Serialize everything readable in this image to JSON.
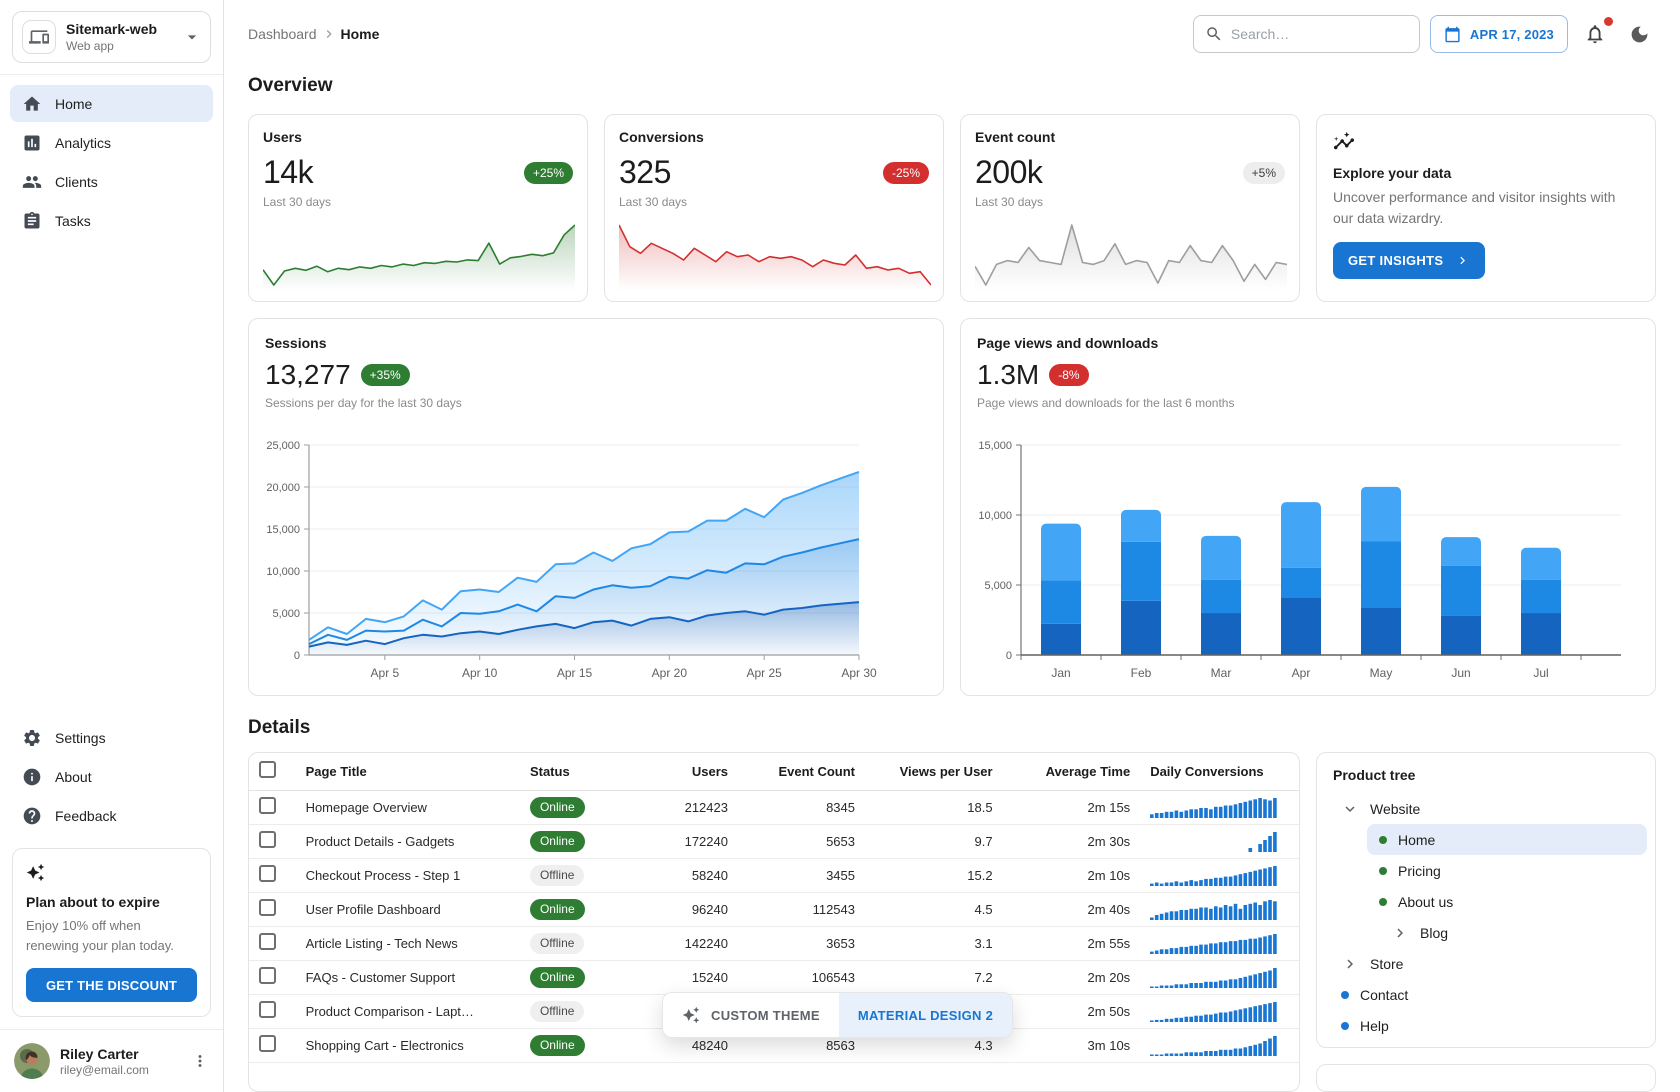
{
  "app": {
    "name": "Sitemark-web",
    "type": "Web app"
  },
  "colors": {
    "accent": "#1876d2",
    "success": "#2e7d32",
    "error": "#d32f2f",
    "spark_bar": "#1976d2"
  },
  "sidebar": {
    "nav": [
      {
        "label": "Home",
        "icon": "home-icon",
        "selected": true
      },
      {
        "label": "Analytics",
        "icon": "analytics-icon",
        "selected": false
      },
      {
        "label": "Clients",
        "icon": "clients-icon",
        "selected": false
      },
      {
        "label": "Tasks",
        "icon": "tasks-icon",
        "selected": false
      }
    ],
    "secondary": [
      {
        "label": "Settings",
        "icon": "gear-icon"
      },
      {
        "label": "About",
        "icon": "info-icon"
      },
      {
        "label": "Feedback",
        "icon": "help-icon"
      }
    ],
    "plan_card": {
      "title": "Plan about to expire",
      "body": "Enjoy 10% off when renewing your plan today.",
      "button": "GET THE DISCOUNT"
    },
    "user": {
      "name": "Riley Carter",
      "email": "riley@email.com"
    }
  },
  "header": {
    "breadcrumb": {
      "root": "Dashboard",
      "current": "Home"
    },
    "search_placeholder": "Search…",
    "date": "APR 17, 2023"
  },
  "overview": {
    "title": "Overview",
    "stat_cards": [
      {
        "title": "Users",
        "value": "14k",
        "chip": "+25%",
        "chip_type": "success",
        "caption": "Last 30 days",
        "color": "#2e7d32",
        "trend": [
          340,
          120,
          320,
          360,
          330,
          390,
          310,
          360,
          340,
          380,
          360,
          400,
          380,
          420,
          400,
          440,
          430,
          460,
          450,
          480,
          470,
          720,
          420,
          510,
          530,
          560,
          540,
          580,
          840,
          980
        ]
      },
      {
        "title": "Conversions",
        "value": "325",
        "chip": "-25%",
        "chip_type": "error",
        "caption": "Last 30 days",
        "color": "#d32f2f",
        "trend": [
          980,
          720,
          640,
          760,
          700,
          640,
          560,
          700,
          620,
          540,
          660,
          600,
          620,
          540,
          600,
          580,
          600,
          560,
          480,
          560,
          520,
          500,
          620,
          460,
          480,
          440,
          460,
          400,
          420,
          260
        ]
      },
      {
        "title": "Event count",
        "value": "200k",
        "chip": "+5%",
        "chip_type": "neutral",
        "caption": "Last 30 days",
        "color": "#9e9e9e",
        "trend": [
          520,
          420,
          530,
          550,
          540,
          620,
          550,
          540,
          530,
          740,
          540,
          530,
          550,
          640,
          530,
          550,
          540,
          430,
          550,
          540,
          630,
          550,
          540,
          630,
          550,
          440,
          530,
          450,
          540,
          530
        ]
      }
    ],
    "insight_card": {
      "title": "Explore your data",
      "body": "Uncover performance and visitor insights with our data wizardry.",
      "button": "GET INSIGHTS"
    }
  },
  "chart_data": [
    {
      "id": "sessions",
      "type": "area",
      "title": "Sessions",
      "value": "13,277",
      "chip": "+35%",
      "chip_type": "success",
      "subtitle": "Sessions per day for the last 30 days",
      "n_points": 30,
      "x_tick_labels": [
        "Apr 5",
        "Apr 10",
        "Apr 15",
        "Apr 20",
        "Apr 25",
        "Apr 30"
      ],
      "x_tick_indices": [
        4,
        9,
        14,
        19,
        24,
        29
      ],
      "ylim": [
        0,
        25000
      ],
      "y_ticks": [
        0,
        5000,
        10000,
        15000,
        20000,
        25000
      ],
      "grid": true,
      "legend": "none",
      "stacked": true,
      "series": [
        {
          "name": "bottom",
          "color": "#1565c0",
          "values": [
            1000,
            1500,
            1200,
            1700,
            1300,
            2000,
            2400,
            2200,
            2600,
            2800,
            2500,
            3000,
            3400,
            3700,
            3200,
            3900,
            4100,
            3500,
            4300,
            4500,
            4000,
            4700,
            5000,
            5200,
            4800,
            5400,
            5600,
            5900,
            6100,
            6300
          ]
        },
        {
          "name": "middle",
          "color": "#1e88e5",
          "values": [
            300,
            900,
            600,
            1200,
            1500,
            900,
            1800,
            1200,
            2400,
            2100,
            2700,
            3000,
            1800,
            3300,
            3600,
            3900,
            4200,
            4500,
            3900,
            4800,
            5100,
            5400,
            4800,
            5700,
            6000,
            6300,
            6600,
            6900,
            7200,
            7500
          ]
        },
        {
          "name": "top",
          "color": "#42a5f5",
          "values": [
            500,
            900,
            700,
            1400,
            1100,
            1700,
            2300,
            2000,
            2600,
            2900,
            2300,
            3200,
            3500,
            3800,
            4100,
            4400,
            2900,
            4700,
            5000,
            5300,
            5600,
            5900,
            6200,
            6500,
            5600,
            6800,
            7100,
            7400,
            7700,
            8000
          ]
        }
      ]
    },
    {
      "id": "pageviews",
      "type": "bar",
      "title": "Page views and downloads",
      "value": "1.3M",
      "chip": "-8%",
      "chip_type": "error",
      "subtitle": "Page views and downloads for the last 6 months",
      "categories": [
        "Jan",
        "Feb",
        "Mar",
        "Apr",
        "May",
        "Jun",
        "Jul"
      ],
      "ylim": [
        0,
        15000
      ],
      "y_ticks": [
        0,
        5000,
        10000,
        15000
      ],
      "grid": true,
      "legend": "none",
      "stacked": true,
      "series": [
        {
          "name": "bottom",
          "color": "#1565c0",
          "values": [
            2234,
            3872,
            2998,
            4125,
            3357,
            2789,
            2998
          ]
        },
        {
          "name": "middle",
          "color": "#1e88e5",
          "values": [
            3098,
            4215,
            2384,
            2101,
            4752,
            3593,
            2384
          ]
        },
        {
          "name": "top",
          "color": "#42a5f5",
          "values": [
            4051,
            2275,
            3129,
            4693,
            3904,
            2038,
            2275
          ]
        }
      ]
    }
  ],
  "details": {
    "title": "Details",
    "table": {
      "columns": [
        "Page Title",
        "Status",
        "Users",
        "Event Count",
        "Views per User",
        "Average Time",
        "Daily Conversions"
      ],
      "rows": [
        {
          "title": "Homepage Overview",
          "status": "Online",
          "users": "212423",
          "event_count": "8345",
          "views_per_user": "18.5",
          "avg_time": "2m 15s",
          "conversions": [
            3,
            4,
            4,
            5,
            5,
            6,
            5,
            6,
            7,
            7,
            8,
            8,
            7,
            9,
            9,
            10,
            10,
            11,
            12,
            13,
            14,
            15,
            16,
            15,
            14,
            16
          ]
        },
        {
          "title": "Product Details - Gadgets",
          "status": "Online",
          "users": "172240",
          "event_count": "5653",
          "views_per_user": "9.7",
          "avg_time": "2m 30s",
          "conversions": [
            0,
            0,
            0,
            0,
            0,
            0,
            0,
            0,
            0,
            0,
            0,
            0,
            0,
            0,
            0,
            0,
            0,
            0,
            0,
            0,
            2,
            0,
            4,
            6,
            8,
            10
          ]
        },
        {
          "title": "Checkout Process - Step 1",
          "status": "Offline",
          "users": "58240",
          "event_count": "3455",
          "views_per_user": "15.2",
          "avg_time": "2m 10s",
          "conversions": [
            2,
            3,
            2,
            3,
            3,
            4,
            3,
            4,
            5,
            4,
            5,
            6,
            6,
            7,
            7,
            8,
            8,
            9,
            10,
            11,
            12,
            13,
            14,
            15,
            16,
            17
          ]
        },
        {
          "title": "User Profile Dashboard",
          "status": "Online",
          "users": "96240",
          "event_count": "112543",
          "views_per_user": "4.5",
          "avg_time": "2m 40s",
          "conversions": [
            2,
            4,
            5,
            6,
            7,
            7,
            8,
            8,
            9,
            9,
            10,
            10,
            9,
            11,
            10,
            12,
            11,
            13,
            9,
            12,
            13,
            14,
            12,
            15,
            16,
            15
          ]
        },
        {
          "title": "Article Listing - Tech News",
          "status": "Offline",
          "users": "142240",
          "event_count": "3653",
          "views_per_user": "3.1",
          "avg_time": "2m 55s",
          "conversions": [
            2,
            3,
            4,
            4,
            5,
            5,
            6,
            6,
            7,
            7,
            8,
            8,
            9,
            9,
            10,
            10,
            11,
            11,
            12,
            12,
            13,
            13,
            14,
            15,
            16,
            17
          ]
        },
        {
          "title": "FAQs - Customer Support",
          "status": "Online",
          "users": "15240",
          "event_count": "106543",
          "views_per_user": "7.2",
          "avg_time": "2m 20s",
          "conversions": [
            1,
            1,
            2,
            2,
            2,
            3,
            3,
            3,
            4,
            4,
            4,
            5,
            5,
            5,
            6,
            6,
            7,
            7,
            8,
            9,
            10,
            11,
            12,
            13,
            14,
            16
          ]
        },
        {
          "title": "Product Comparison - Lapt…",
          "status": "Offline",
          "users": "",
          "event_count": "",
          "views_per_user": "",
          "avg_time": "2m 50s",
          "conversions": [
            1,
            2,
            2,
            3,
            3,
            4,
            4,
            5,
            5,
            6,
            6,
            7,
            7,
            8,
            9,
            9,
            10,
            11,
            12,
            13,
            14,
            15,
            16,
            17,
            18,
            19
          ]
        },
        {
          "title": "Shopping Cart - Electronics",
          "status": "Online",
          "users": "48240",
          "event_count": "8563",
          "views_per_user": "4.3",
          "avg_time": "3m 10s",
          "conversions": [
            1,
            1,
            1,
            2,
            2,
            2,
            2,
            3,
            3,
            3,
            3,
            4,
            4,
            4,
            5,
            5,
            5,
            6,
            6,
            7,
            8,
            9,
            10,
            12,
            14,
            16
          ]
        }
      ]
    },
    "product_tree": {
      "title": "Product tree",
      "items": [
        {
          "label": "Website",
          "icon": "chevron-down-icon",
          "indent": 0,
          "selected": false
        },
        {
          "label": "Home",
          "icon": "dot-green",
          "indent": 1,
          "selected": true
        },
        {
          "label": "Pricing",
          "icon": "dot-green",
          "indent": 1,
          "selected": false
        },
        {
          "label": "About us",
          "icon": "dot-green",
          "indent": 1,
          "selected": false
        },
        {
          "label": "Blog",
          "icon": "chevron-right-icon",
          "indent": 1,
          "extra": true,
          "selected": false
        },
        {
          "label": "Store",
          "icon": "chevron-right-icon",
          "indent": 0,
          "selected": false
        },
        {
          "label": "Contact",
          "icon": "dot-blue",
          "indent": 0,
          "selected": false
        },
        {
          "label": "Help",
          "icon": "dot-blue",
          "indent": 0,
          "selected": false
        }
      ]
    }
  },
  "theme_toggle": {
    "custom": "CUSTOM THEME",
    "md2": "MATERIAL DESIGN 2"
  }
}
